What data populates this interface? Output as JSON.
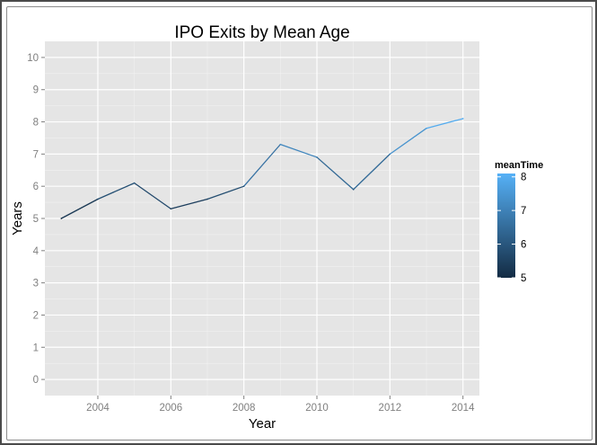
{
  "chart_data": {
    "type": "line",
    "title": "IPO Exits by Mean Age",
    "xlabel": "Year",
    "ylabel": "Years",
    "x": [
      2003,
      2004,
      2005,
      2006,
      2007,
      2008,
      2009,
      2010,
      2011,
      2012,
      2013,
      2014
    ],
    "values": [
      5.0,
      5.6,
      6.1,
      5.3,
      5.6,
      6.0,
      7.3,
      6.9,
      5.9,
      7.0,
      7.8,
      8.1
    ],
    "xlim": [
      2002.55,
      2014.45
    ],
    "ylim": [
      -0.5,
      10.5
    ],
    "xticks": [
      "2004",
      "2006",
      "2008",
      "2010",
      "2012",
      "2014"
    ],
    "yticks": [
      "0",
      "1",
      "2",
      "3",
      "4",
      "5",
      "6",
      "7",
      "8",
      "9",
      "10"
    ],
    "grid": true,
    "legend": {
      "title": "meanTime",
      "placement": "right",
      "ticks": [
        "5",
        "6",
        "7",
        "8"
      ],
      "range": [
        5.0,
        8.1
      ],
      "color_low": "#132b43",
      "color_high": "#56b1f7"
    },
    "panel_color": "#e5e5e5",
    "grid_color": "#ffffff"
  }
}
